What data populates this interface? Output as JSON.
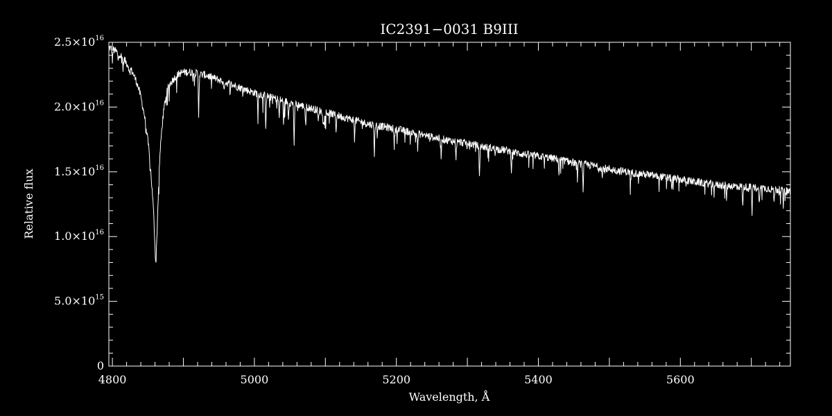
{
  "chart_data": {
    "type": "line",
    "title": "IC2391−0031   B9III",
    "xlabel": "Wavelength, Å",
    "ylabel": "Relative flux",
    "xlim": [
      4795,
      5755
    ],
    "ylim": [
      0,
      2.5e+16
    ],
    "x_ticks": [
      {
        "value": 4800,
        "label": "4800"
      },
      {
        "value": 5000,
        "label": "5000"
      },
      {
        "value": 5200,
        "label": "5200"
      },
      {
        "value": 5400,
        "label": "5400"
      },
      {
        "value": 5600,
        "label": "5600"
      }
    ],
    "y_ticks": [
      {
        "value": 0,
        "mantissa": "0",
        "exponent": ""
      },
      {
        "value": 5000000000000000.0,
        "mantissa": "5.0×10",
        "exponent": "15"
      },
      {
        "value": 1e+16,
        "mantissa": "1.0×10",
        "exponent": "16"
      },
      {
        "value": 1.5e+16,
        "mantissa": "1.5×10",
        "exponent": "16"
      },
      {
        "value": 2e+16,
        "mantissa": "2.0×10",
        "exponent": "16"
      },
      {
        "value": 2.5e+16,
        "mantissa": "2.5×10",
        "exponent": "16"
      }
    ],
    "x_minor_step": 20,
    "y_minor_step": 1000000000000000.0,
    "grid": false,
    "series": [
      {
        "x": [
          4795,
          4800,
          4805,
          4810,
          4815,
          4820,
          4825,
          4830,
          4835,
          4840,
          4845,
          4848,
          4851,
          4853,
          4855,
          4857,
          4858,
          4859,
          4860,
          4861,
          4862,
          4863,
          4864,
          4865,
          4866,
          4867,
          4869,
          4871,
          4874,
          4877,
          4880,
          4885,
          4890,
          4895,
          4900,
          4905,
          4910,
          4915,
          4920,
          4925,
          4930,
          4940,
          4950,
          4960,
          4970,
          4980,
          4990,
          5000,
          5020,
          5040,
          5060,
          5080,
          5100,
          5120,
          5140,
          5160,
          5180,
          5200,
          5225,
          5250,
          5275,
          5300,
          5325,
          5350,
          5375,
          5400,
          5425,
          5450,
          5475,
          5500,
          5525,
          5550,
          5575,
          5600,
          5625,
          5650,
          5675,
          5700,
          5725,
          5755
        ],
        "y": [
          2.46e+16,
          2.45e+16,
          2.43e+16,
          2.41e+16,
          2.38e+16,
          2.34e+16,
          2.3e+16,
          2.25e+16,
          2.18e+16,
          2.08e+16,
          1.94e+16,
          1.82e+16,
          1.69e+16,
          1.57e+16,
          1.43e+16,
          1.28e+16,
          1.18e+16,
          1.06e+16,
          9200000000000000.0,
          8000000000000000.0,
          9000000000000000.0,
          1.05e+16,
          1.22e+16,
          1.38e+16,
          1.52e+16,
          1.63e+16,
          1.79e+16,
          1.91e+16,
          2.04e+16,
          2.12e+16,
          2.17e+16,
          2.21e+16,
          2.24e+16,
          2.26e+16,
          2.27e+16,
          2.27e+16,
          2.27e+16,
          2.26e+16,
          2.26e+16,
          2.25e+16,
          2.25e+16,
          2.23e+16,
          2.21e+16,
          2.19e+16,
          2.17e+16,
          2.15e+16,
          2.13e+16,
          2.11e+16,
          2.08e+16,
          2.05e+16,
          2.02e+16,
          1.99e+16,
          1.96e+16,
          1.93e+16,
          1.9e+16,
          1.87e+16,
          1.85e+16,
          1.83e+16,
          1.8e+16,
          1.77e+16,
          1.74e+16,
          1.72e+16,
          1.69e+16,
          1.67e+16,
          1.64e+16,
          1.62e+16,
          1.6e+16,
          1.57e+16,
          1.55e+16,
          1.52e+16,
          1.5e+16,
          1.48e+16,
          1.46e+16,
          1.44e+16,
          1.42e+16,
          1.4e+16,
          1.39e+16,
          1.38e+16,
          1.37e+16,
          1.35e+16
        ]
      }
    ],
    "absorption_lines": [
      {
        "x": 4800,
        "depth": 900000000000000.0
      },
      {
        "x": 4808,
        "depth": 700000000000000.0
      },
      {
        "x": 4815,
        "depth": 900000000000000.0
      },
      {
        "x": 4824,
        "depth": 600000000000000.0
      },
      {
        "x": 4921.5,
        "depth": 3200000000000000.0
      },
      {
        "x": 4957,
        "depth": 800000000000000.0
      },
      {
        "x": 5005,
        "depth": 1200000000000000.0
      },
      {
        "x": 5016,
        "depth": 2400000000000000.0
      },
      {
        "x": 5035,
        "depth": 1500000000000000.0
      },
      {
        "x": 5041,
        "depth": 1700000000000000.0
      },
      {
        "x": 5048,
        "depth": 1200000000000000.0
      },
      {
        "x": 5056,
        "depth": 3500000000000000.0
      },
      {
        "x": 5072,
        "depth": 1200000000000000.0
      },
      {
        "x": 5090,
        "depth": 1000000000000000.0
      },
      {
        "x": 5097,
        "depth": 1100000000000000.0
      },
      {
        "x": 5115,
        "depth": 1200000000000000.0
      },
      {
        "x": 5141,
        "depth": 1200000000000000.0
      },
      {
        "x": 5169,
        "depth": 2200000000000000.0
      },
      {
        "x": 5197,
        "depth": 1400000000000000.0
      },
      {
        "x": 5230,
        "depth": 1200000000000000.0
      },
      {
        "x": 5263,
        "depth": 1300000000000000.0
      },
      {
        "x": 5284,
        "depth": 1200000000000000.0
      },
      {
        "x": 5317,
        "depth": 2600000000000000.0
      },
      {
        "x": 5362,
        "depth": 1400000000000000.0
      },
      {
        "x": 5429,
        "depth": 1200000000000000.0
      },
      {
        "x": 5455,
        "depth": 1200000000000000.0
      },
      {
        "x": 5463,
        "depth": 2000000000000000.0
      },
      {
        "x": 5490,
        "depth": 800000000000000.0
      },
      {
        "x": 5530,
        "depth": 700000000000000.0
      },
      {
        "x": 5588,
        "depth": 800000000000000.0
      },
      {
        "x": 5665,
        "depth": 1000000000000000.0
      },
      {
        "x": 5688,
        "depth": 1600000000000000.0
      },
      {
        "x": 5701,
        "depth": 1800000000000000.0
      },
      {
        "x": 5711,
        "depth": 1300000000000000.0
      },
      {
        "x": 5732,
        "depth": 1000000000000000.0
      },
      {
        "x": 5745,
        "depth": 1200000000000000.0
      }
    ],
    "colors": {
      "background": "#000000",
      "foreground": "#ffffff"
    }
  }
}
